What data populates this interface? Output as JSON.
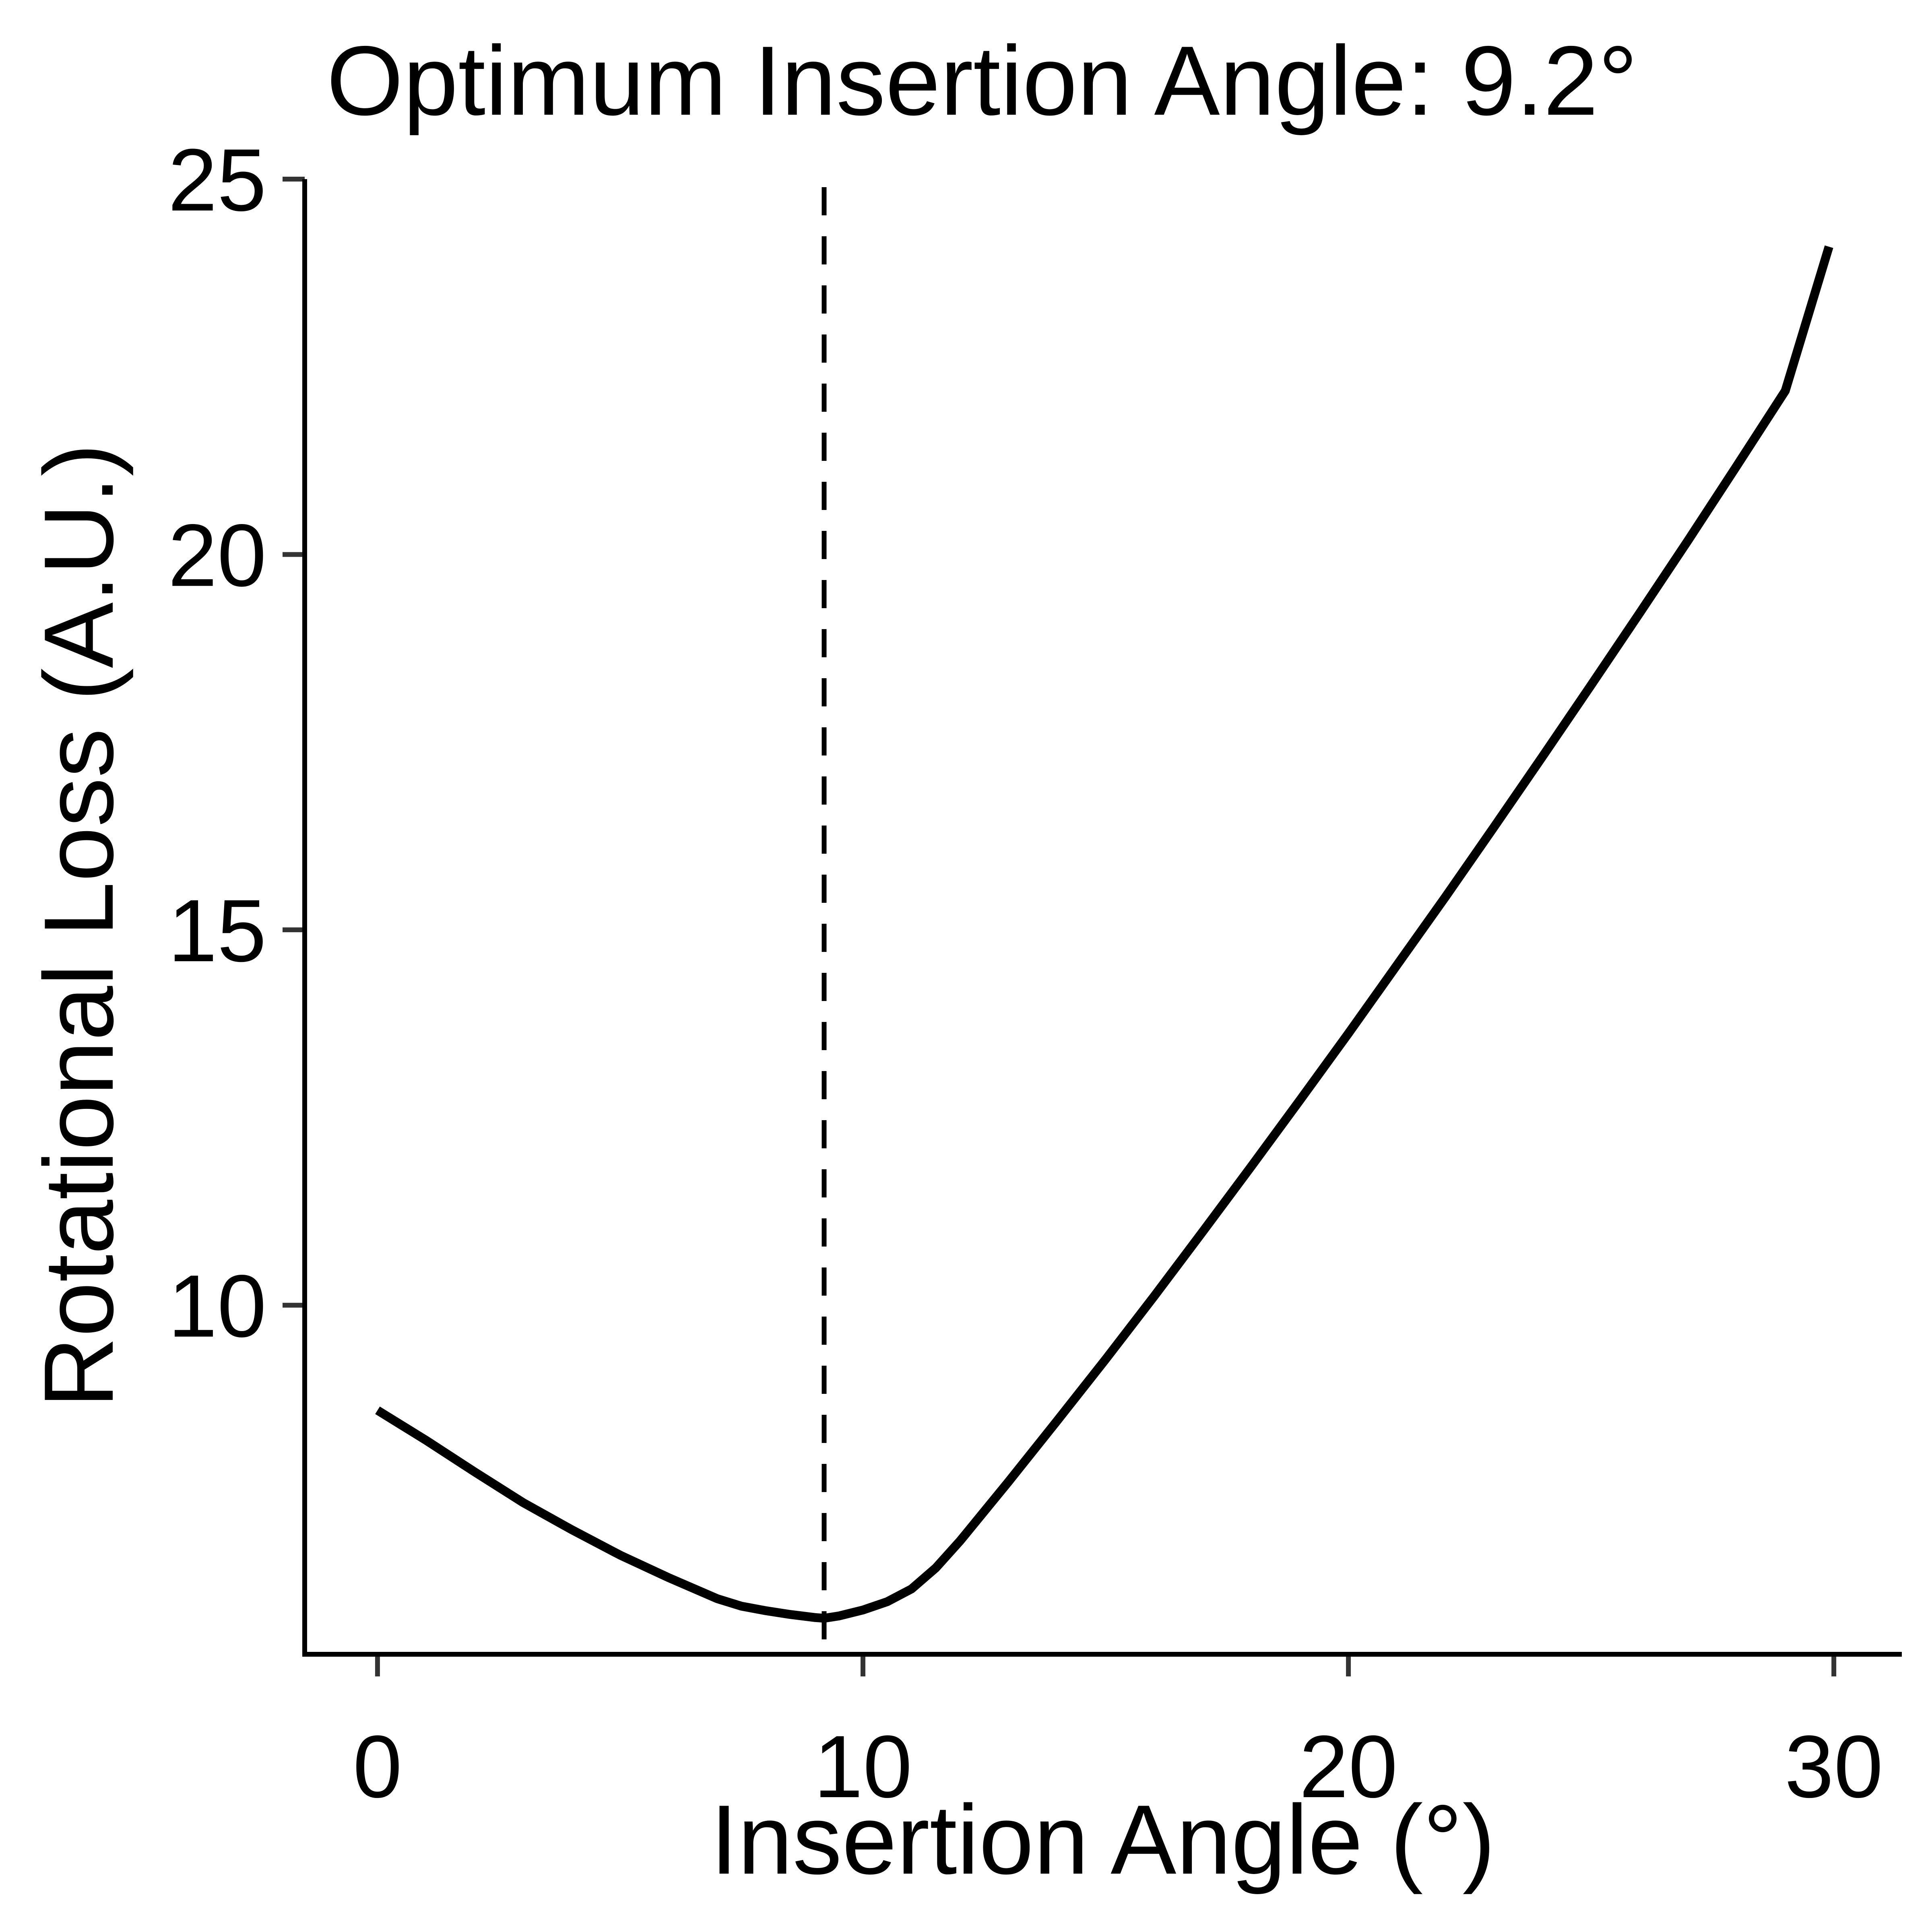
{
  "chart_data": {
    "type": "line",
    "title": "Optimum Insertion Angle: 9.2°",
    "xlabel": "Insertion Angle (°)",
    "ylabel": "Rotational Loss (A.U.)",
    "xlim": [
      -1.5,
      31.4
    ],
    "ylim": [
      5.35,
      25.0
    ],
    "x_ticks": [
      0,
      10,
      20,
      30
    ],
    "y_ticks": [
      10,
      15,
      20,
      25
    ],
    "grid": false,
    "legend": "none",
    "reference_line": {
      "orientation": "vertical",
      "x": 9.2,
      "style": "dashed"
    },
    "series": [
      {
        "x": [
          0.0,
          0.5,
          1.0,
          2.0,
          3.0,
          4.0,
          5.0,
          6.0,
          7.0,
          7.5,
          8.0,
          8.5,
          9.0,
          9.2,
          9.5,
          10.0,
          10.5,
          11.0,
          11.5,
          12.0,
          13.0,
          14.0,
          15.0,
          16.0,
          17.0,
          18.0,
          19.0,
          20.0,
          21.0,
          22.0,
          23.0,
          24.0,
          25.0,
          26.0,
          27.0,
          28.0,
          29.0,
          29.9
        ],
        "y": [
          8.6,
          8.4,
          8.2,
          7.78,
          7.37,
          7.01,
          6.67,
          6.37,
          6.09,
          5.99,
          5.93,
          5.88,
          5.84,
          5.83,
          5.86,
          5.94,
          6.05,
          6.22,
          6.5,
          6.86,
          7.65,
          8.46,
          9.28,
          10.12,
          10.98,
          11.85,
          12.73,
          13.62,
          14.53,
          15.44,
          16.37,
          17.31,
          18.26,
          19.22,
          20.19,
          21.18,
          22.18,
          24.1
        ]
      }
    ]
  },
  "colors": {
    "line": "#000000",
    "axis": "#000000",
    "tick": "#333333",
    "background": "#ffffff"
  }
}
